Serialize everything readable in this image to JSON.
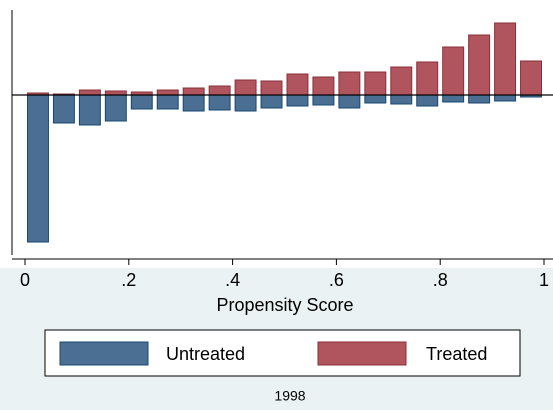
{
  "chart_data": {
    "type": "histogram",
    "xlabel": "Propensity Score",
    "note": "1998",
    "bins": [
      0,
      0.05,
      0.1,
      0.15,
      0.2,
      0.25,
      0.3,
      0.35,
      0.4,
      0.45,
      0.5,
      0.55,
      0.6,
      0.65,
      0.7,
      0.75,
      0.8,
      0.85,
      0.9,
      0.95,
      1
    ],
    "series": [
      {
        "name": "Untreated",
        "color": "#4a6f93",
        "edge": "#1a476f",
        "values": [
          -147,
          -28,
          -30,
          -26,
          -14,
          -14,
          -16,
          -15,
          -16,
          -13,
          -11,
          -10,
          -13,
          -8,
          -9,
          -11,
          -7,
          -8,
          -6,
          -2
        ]
      },
      {
        "name": "Treated",
        "color": "#b0545e",
        "edge": "#8a2f38",
        "values": [
          2,
          1,
          5,
          4,
          3,
          5,
          7,
          9,
          15,
          14,
          21,
          18,
          23,
          23,
          28,
          33,
          48,
          60,
          72,
          34
        ]
      }
    ],
    "xlim": [
      0,
      1
    ],
    "xticks": [
      0,
      {
        "value": 0.2,
        "label": ".2"
      },
      {
        "value": 0.4,
        "label": ".4"
      },
      {
        "value": 0.6,
        "label": ".6"
      },
      {
        "value": 0.8,
        "label": ".8"
      },
      1
    ],
    "ylim": [
      -160,
      85
    ],
    "legend": "bottom"
  }
}
